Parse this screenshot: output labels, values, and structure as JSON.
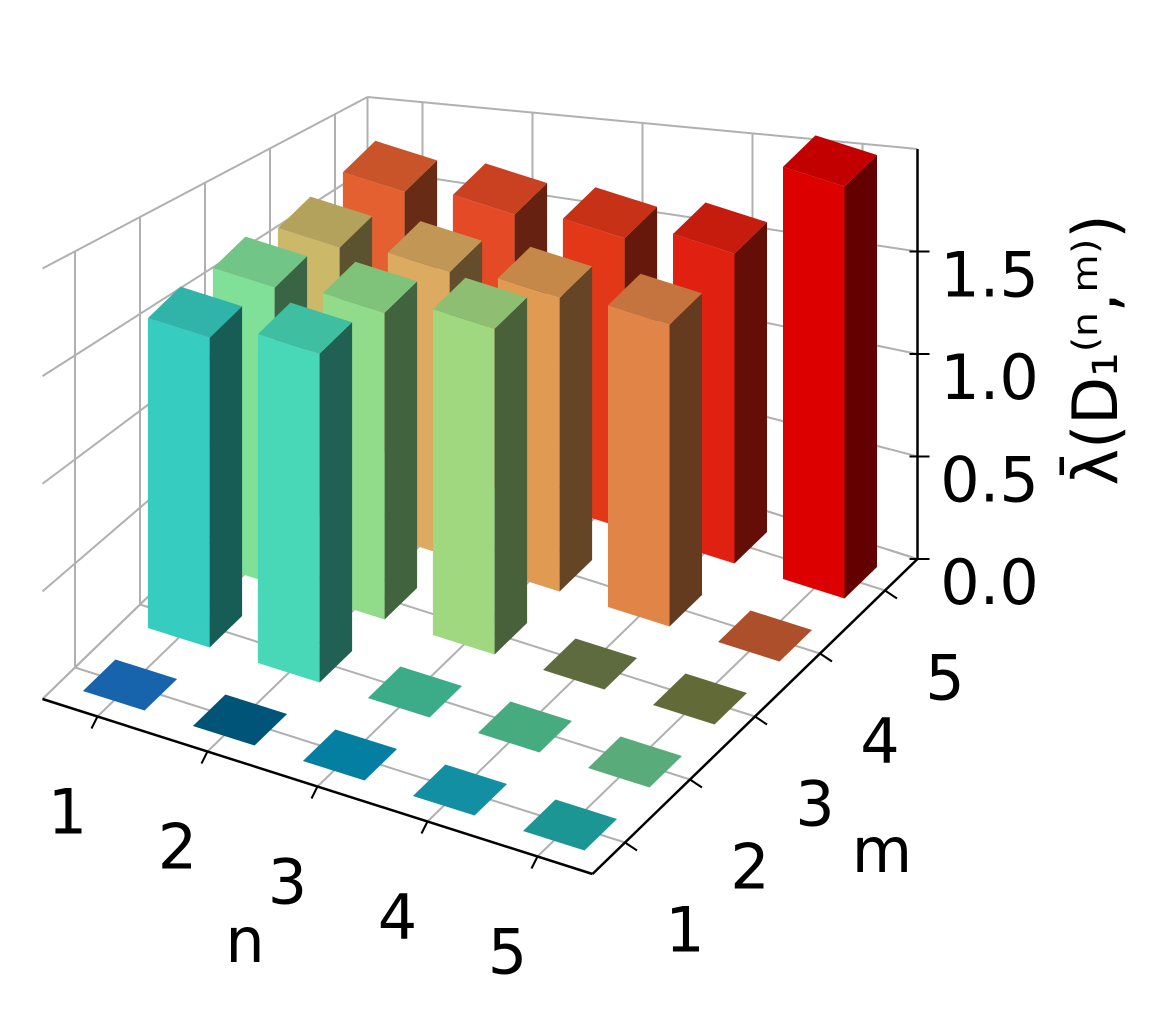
{
  "chart_data": {
    "type": "bar3d",
    "xlabel": "n",
    "ylabel": "m",
    "zlabel": "λ̄(D₁⁽ⁿ,ᵐ⁾)",
    "x_categories": [
      1,
      2,
      3,
      4,
      5
    ],
    "y_categories": [
      1,
      2,
      3,
      4,
      5
    ],
    "values": [
      [
        0,
        1.55,
        1.6,
        1.6,
        1.7
      ],
      [
        0,
        1.55,
        1.55,
        1.55,
        1.65
      ],
      [
        0,
        0,
        1.55,
        1.5,
        1.6
      ],
      [
        0,
        0,
        0,
        1.45,
        1.6
      ],
      [
        0,
        0,
        0,
        0,
        2.0
      ]
    ],
    "colors": [
      [
        "#1a72c4",
        "#36cdc0",
        "#80e098",
        "#cbb868",
        "#e46030"
      ],
      [
        "#005f87",
        "#48d8b8",
        "#90dc8a",
        "#dcaa60",
        "#e44a25"
      ],
      [
        "#0590b8",
        "#44c49a",
        "#a0d880",
        "#e09a52",
        "#e23818"
      ],
      [
        "#14a2b8",
        "#50c490",
        "#6a7a48",
        "#e08448",
        "#e02010"
      ],
      [
        "#20aaa8",
        "#65c48a",
        "#6f7840",
        "#c45a30",
        "#dc0000"
      ]
    ],
    "zlim": [
      0,
      2.0
    ],
    "zticks": [
      {
        "value": 0,
        "label": "0.0"
      },
      {
        "value": 0.5,
        "label": "0.5"
      },
      {
        "value": 1.0,
        "label": "1.0"
      },
      {
        "value": 1.5,
        "label": "1.5"
      }
    ],
    "grid": true
  }
}
